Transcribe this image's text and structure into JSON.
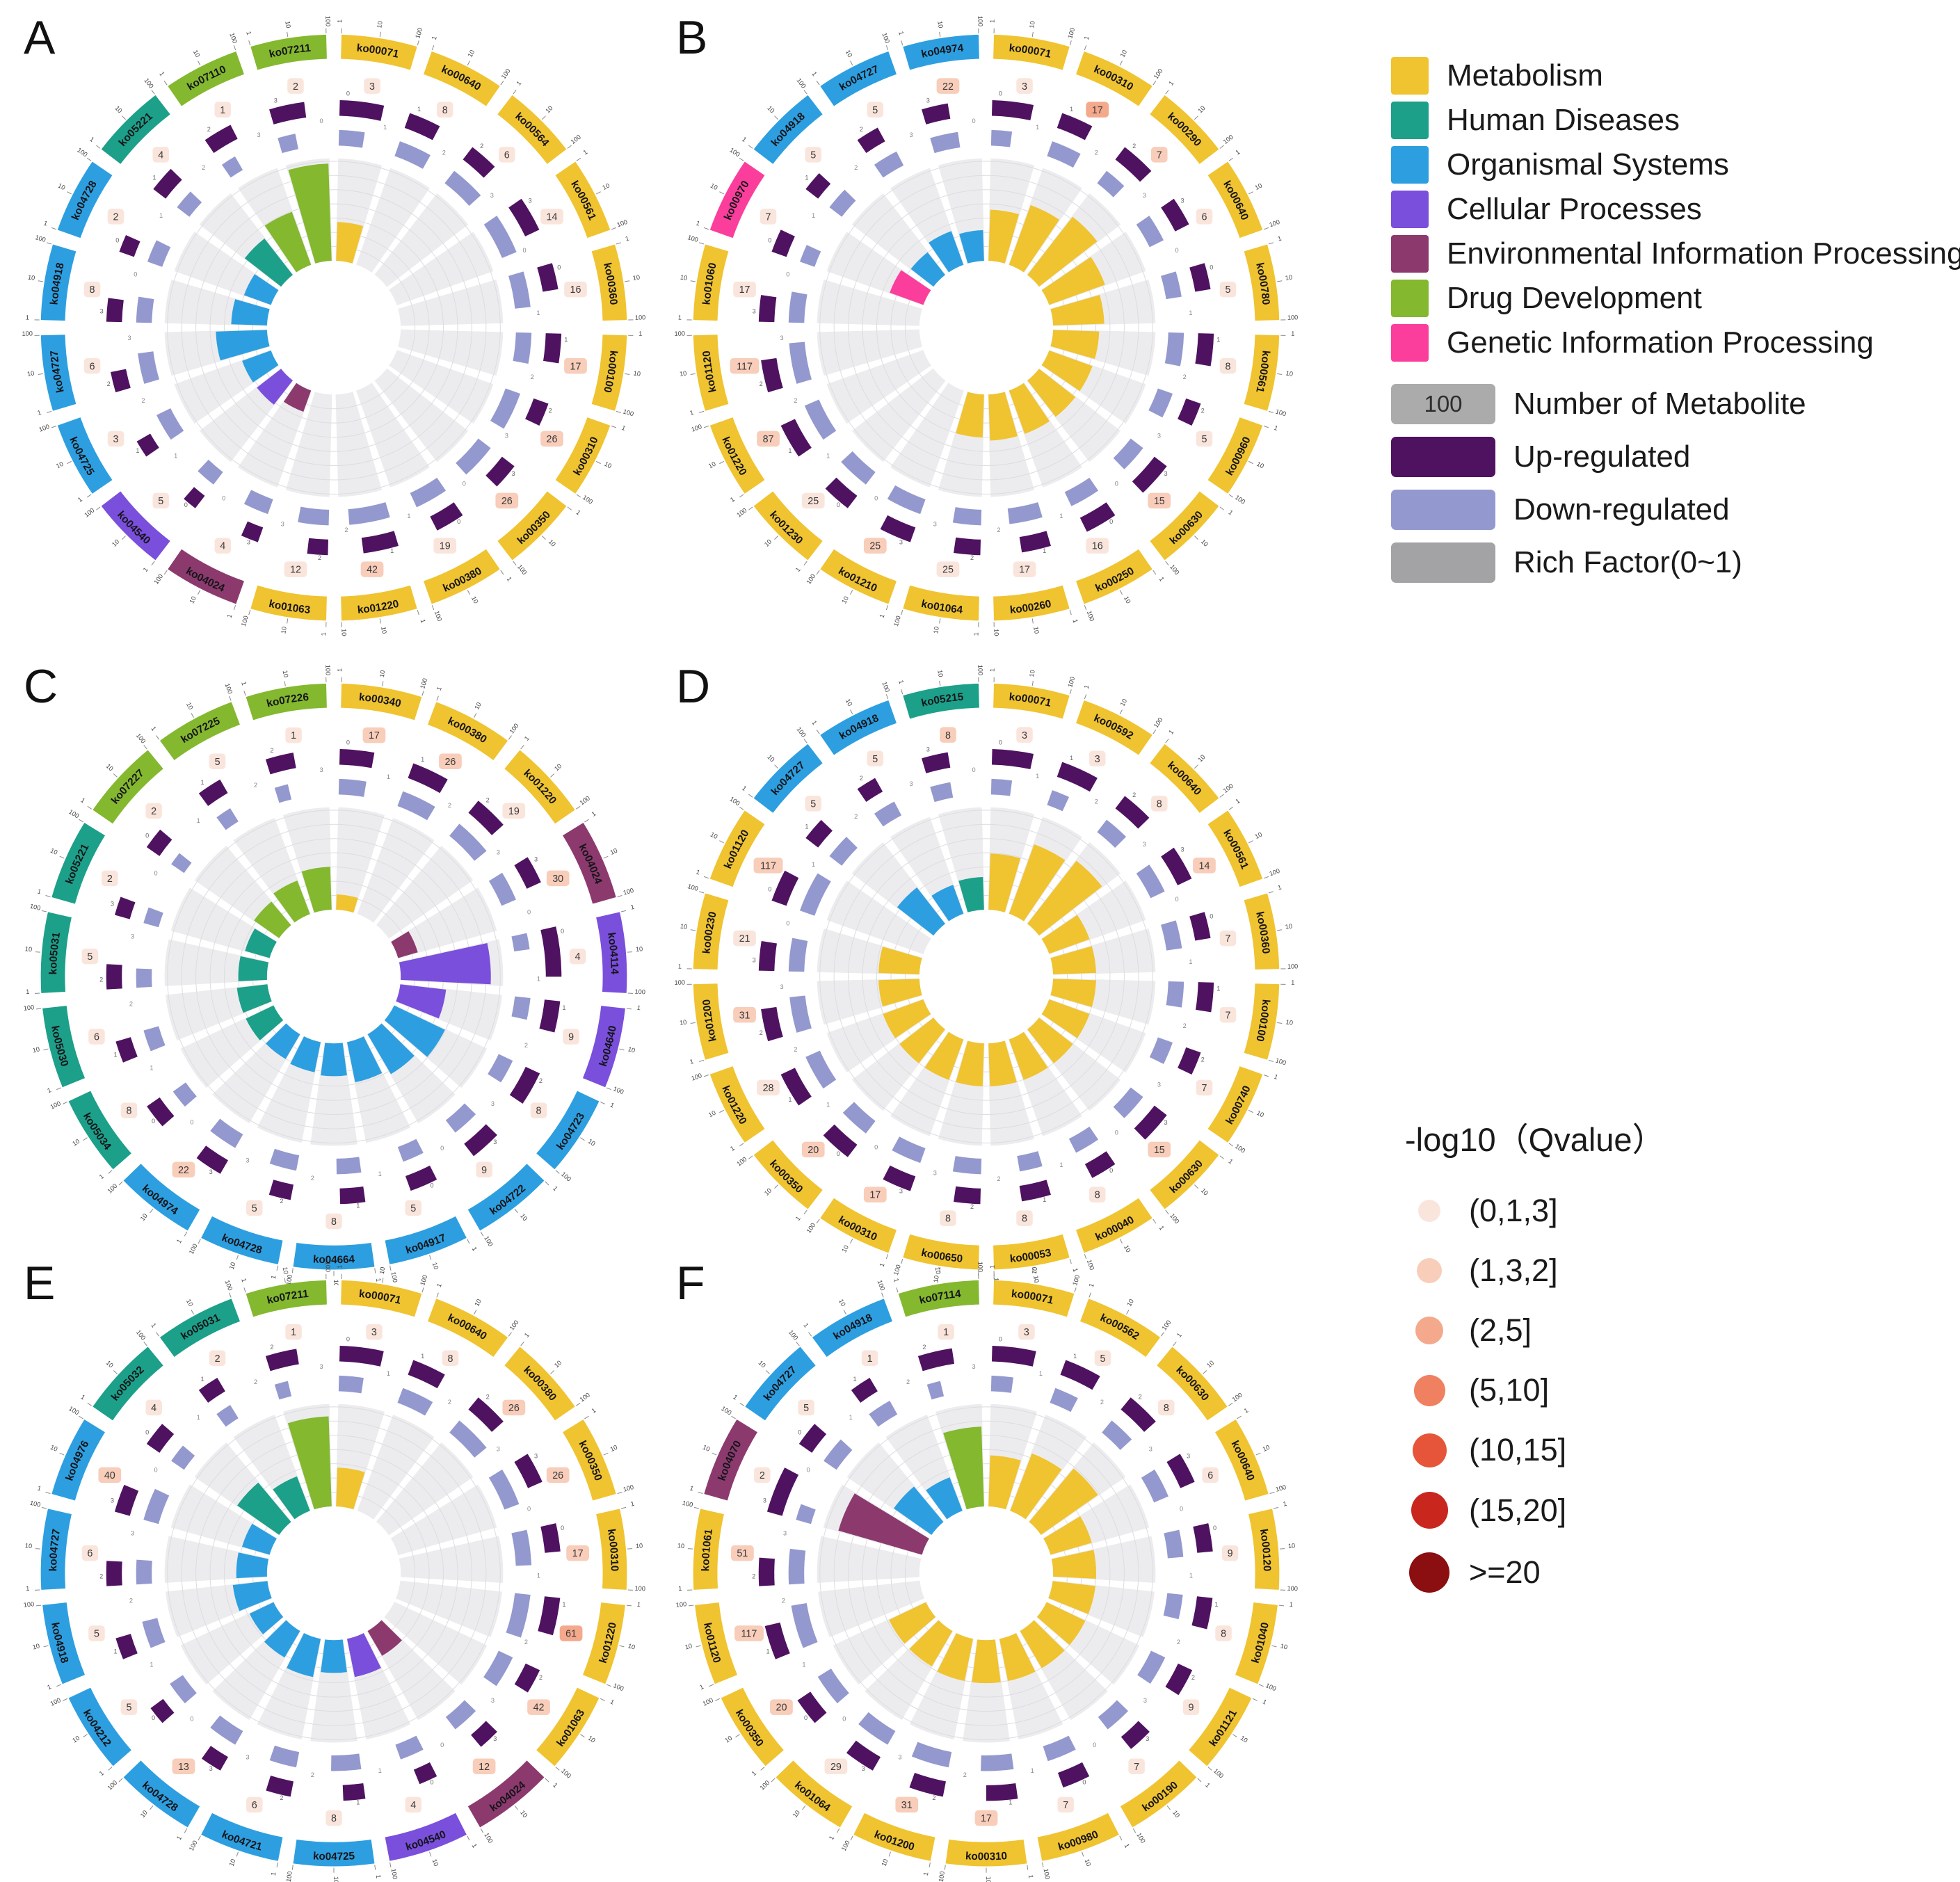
{
  "legend": {
    "categories": [
      {
        "name": "Metabolism",
        "color": "#F0C330"
      },
      {
        "name": "Human Diseases",
        "color": "#1CA089"
      },
      {
        "name": "Organismal Systems",
        "color": "#2D9FE0"
      },
      {
        "name": "Cellular Processes",
        "color": "#7A4FDB"
      },
      {
        "name": "Environmental Information Processing",
        "color": "#8C3A6E"
      },
      {
        "name": "Drug Development",
        "color": "#84B82F"
      },
      {
        "name": "Genetic Information Processing",
        "color": "#FB3E9C"
      }
    ],
    "tracks": [
      {
        "label": "Number of Metabolite",
        "color": "#ABABAB",
        "badge": "100"
      },
      {
        "label": "Up-regulated",
        "color": "#4F1260"
      },
      {
        "label": "Down-regulated",
        "color": "#9399CE"
      },
      {
        "label": "Rich Factor(0~1)",
        "color": "#A3A3A5"
      }
    ],
    "qvalue": {
      "title": "-log10（Qvalue）",
      "bins": [
        {
          "label": "(0,1,3]",
          "color": "#FAE5DC"
        },
        {
          "label": "(1,3,2]",
          "color": "#F8CDBA"
        },
        {
          "label": "(2,5]",
          "color": "#F4A98C"
        },
        {
          "label": "(5,10]",
          "color": "#EF8060"
        },
        {
          "label": "(10,15]",
          "color": "#E6553A"
        },
        {
          "label": "(15,20]",
          "color": "#C9271E"
        },
        {
          "label": ">=20",
          "color": "#8B0E10"
        }
      ]
    }
  },
  "chart_data": {
    "type": "circular-enrichment-bar",
    "description": "Six circos-style KEGG pathway enrichment plots (A-F). Rings outside-in: pathway ID colored by category, number of metabolites badge (shaded by -log10 Qvalue bin), up-regulated arc, down-regulated arc, inner bars = Rich Factor (0~1).",
    "outer_axis_ticks": [
      "1",
      "10",
      "100"
    ],
    "ring_axis_ticks": [
      "0",
      "1",
      "2",
      "3"
    ],
    "segment_fields": [
      "pathway_id",
      "category_index",
      "metabolite_count",
      "qvalue_bin",
      "up_fraction",
      "down_fraction",
      "rich_factor"
    ],
    "panels": [
      {
        "label": "A",
        "segments": [
          [
            "ko00071",
            0,
            3,
            0,
            0.75,
            0.5,
            0.38
          ],
          [
            "ko00640",
            0,
            8,
            0,
            0.55,
            0.65,
            0
          ],
          [
            "ko00564",
            0,
            6,
            0,
            0.5,
            0.7,
            0
          ],
          [
            "ko00561",
            0,
            14,
            0,
            0.6,
            0.8,
            0
          ],
          [
            "ko00360",
            0,
            16,
            0,
            0.45,
            0.7,
            0
          ],
          [
            "ko00100",
            0,
            17,
            1,
            0.5,
            0.6,
            0
          ],
          [
            "ko00310",
            0,
            26,
            1,
            0.4,
            0.75,
            0
          ],
          [
            "ko00350",
            0,
            26,
            1,
            0.45,
            0.7,
            0
          ],
          [
            "ko00380",
            0,
            19,
            0,
            0.5,
            0.65,
            0
          ],
          [
            "ko01220",
            0,
            42,
            1,
            0.6,
            0.8,
            0
          ],
          [
            "ko01063",
            0,
            12,
            0,
            0.35,
            0.6,
            0
          ],
          [
            "ko04024",
            4,
            4,
            0,
            0.3,
            0.5,
            0.22
          ],
          [
            "ko04540",
            3,
            5,
            0,
            0.25,
            0.4,
            0.3
          ],
          [
            "ko04725",
            2,
            3,
            0,
            0.3,
            0.55,
            0.3
          ],
          [
            "ko04727",
            2,
            6,
            0,
            0.35,
            0.6,
            0.5
          ],
          [
            "ko04918",
            2,
            8,
            0,
            0.4,
            0.5,
            0.35
          ],
          [
            "ko04728",
            2,
            2,
            0,
            0.3,
            0.45,
            0.28
          ],
          [
            "ko05221",
            1,
            4,
            0,
            0.45,
            0.4,
            0.45
          ],
          [
            "ko07110",
            5,
            1,
            0,
            0.5,
            0.3,
            0.55
          ],
          [
            "ko07211",
            5,
            2,
            0,
            0.6,
            0.35,
            0.95
          ]
        ]
      },
      {
        "label": "B",
        "segments": [
          [
            "ko00071",
            0,
            3,
            0,
            0.7,
            0.4,
            0.5
          ],
          [
            "ko00310",
            0,
            17,
            2,
            0.55,
            0.6,
            0.62
          ],
          [
            "ko00290",
            0,
            7,
            1,
            0.6,
            0.45,
            0.72
          ],
          [
            "ko00640",
            0,
            6,
            0,
            0.5,
            0.55,
            0.58
          ],
          [
            "ko00780",
            0,
            5,
            0,
            0.45,
            0.5,
            0.5
          ],
          [
            "ko00561",
            0,
            8,
            0,
            0.55,
            0.65,
            0.45
          ],
          [
            "ko00960",
            0,
            5,
            0,
            0.4,
            0.5,
            0.45
          ],
          [
            "ko00630",
            0,
            15,
            1,
            0.6,
            0.55,
            0.45
          ],
          [
            "ko00250",
            0,
            16,
            0,
            0.55,
            0.6,
            0.45
          ],
          [
            "ko00260",
            0,
            17,
            0,
            0.5,
            0.65,
            0.45
          ],
          [
            "ko01064",
            0,
            25,
            0,
            0.45,
            0.55,
            0.42
          ],
          [
            "ko01210",
            0,
            25,
            1,
            0.55,
            0.7,
            0
          ],
          [
            "ko01230",
            0,
            25,
            0,
            0.5,
            0.65,
            0
          ],
          [
            "ko01220",
            0,
            87,
            1,
            0.6,
            0.75,
            0
          ],
          [
            "ko01120",
            0,
            117,
            1,
            0.55,
            0.8,
            0
          ],
          [
            "ko01060",
            0,
            17,
            0,
            0.45,
            0.6,
            0
          ],
          [
            "ko00970",
            6,
            7,
            0,
            0.4,
            0.35,
            0.35
          ],
          [
            "ko04918",
            2,
            5,
            0,
            0.35,
            0.45,
            0.28
          ],
          [
            "ko04727",
            2,
            5,
            0,
            0.4,
            0.5,
            0.35
          ],
          [
            "ko04974",
            2,
            22,
            1,
            0.45,
            0.55,
            0.3
          ]
        ]
      },
      {
        "label": "C",
        "segments": [
          [
            "ko00340",
            0,
            17,
            1,
            0.55,
            0.5,
            0.15
          ],
          [
            "ko00380",
            0,
            26,
            1,
            0.6,
            0.65,
            0
          ],
          [
            "ko01220",
            0,
            19,
            0,
            0.55,
            0.7,
            0
          ],
          [
            "ko04024",
            4,
            30,
            1,
            0.45,
            0.55,
            0.2
          ],
          [
            "ko04114",
            3,
            4,
            0,
            0.8,
            0.3,
            0.88
          ],
          [
            "ko04640",
            3,
            9,
            0,
            0.5,
            0.4,
            0.45
          ],
          [
            "ko04723",
            2,
            8,
            0,
            0.55,
            0.45,
            0.55
          ],
          [
            "ko04722",
            2,
            9,
            0,
            0.5,
            0.5,
            0.45
          ],
          [
            "ko04917",
            2,
            5,
            0,
            0.45,
            0.4,
            0.4
          ],
          [
            "ko04664",
            2,
            8,
            0,
            0.4,
            0.45,
            0.32
          ],
          [
            "ko04728",
            2,
            5,
            0,
            0.35,
            0.5,
            0.3
          ],
          [
            "ko04974",
            2,
            22,
            1,
            0.45,
            0.55,
            0.28
          ],
          [
            "ko05034",
            1,
            8,
            0,
            0.4,
            0.35,
            0.3
          ],
          [
            "ko05030",
            1,
            6,
            0,
            0.35,
            0.4,
            0.3
          ],
          [
            "ko05031",
            1,
            5,
            0,
            0.4,
            0.35,
            0.28
          ],
          [
            "ko05221",
            1,
            2,
            0,
            0.3,
            0.3,
            0.25
          ],
          [
            "ko07227",
            5,
            2,
            0,
            0.35,
            0.25,
            0.3
          ],
          [
            "ko07225",
            5,
            5,
            0,
            0.4,
            0.3,
            0.35
          ],
          [
            "ko07226",
            5,
            1,
            0,
            0.45,
            0.25,
            0.42
          ]
        ]
      },
      {
        "label": "D",
        "segments": [
          [
            "ko00071",
            0,
            3,
            0,
            0.7,
            0.4,
            0.55
          ],
          [
            "ko00592",
            0,
            3,
            0,
            0.65,
            0.35,
            0.72
          ],
          [
            "ko00640",
            0,
            8,
            0,
            0.55,
            0.5,
            0.78
          ],
          [
            "ko00561",
            0,
            14,
            1,
            0.6,
            0.6,
            0.42
          ],
          [
            "ko00360",
            0,
            7,
            0,
            0.45,
            0.55,
            0.42
          ],
          [
            "ko00100",
            0,
            7,
            0,
            0.5,
            0.5,
            0.42
          ],
          [
            "ko00740",
            0,
            7,
            0,
            0.4,
            0.45,
            0.42
          ],
          [
            "ko00630",
            0,
            15,
            1,
            0.55,
            0.55,
            0.42
          ],
          [
            "ko00040",
            0,
            8,
            0,
            0.45,
            0.5,
            0.42
          ],
          [
            "ko00053",
            0,
            8,
            0,
            0.5,
            0.45,
            0.42
          ],
          [
            "ko00650",
            0,
            8,
            0,
            0.45,
            0.55,
            0.42
          ],
          [
            "ko00310",
            0,
            17,
            1,
            0.5,
            0.6,
            0.42
          ],
          [
            "ko00350",
            0,
            20,
            1,
            0.55,
            0.6,
            0.42
          ],
          [
            "ko01220",
            0,
            28,
            0,
            0.6,
            0.7,
            0.42
          ],
          [
            "ko01200",
            0,
            31,
            1,
            0.55,
            0.7,
            0.4
          ],
          [
            "ko00230",
            0,
            21,
            0,
            0.5,
            0.65,
            0.4
          ],
          [
            "ko01120",
            0,
            117,
            1,
            0.55,
            0.8,
            0
          ],
          [
            "ko04727",
            2,
            5,
            0,
            0.4,
            0.5,
            0.45
          ],
          [
            "ko04918",
            2,
            5,
            0,
            0.35,
            0.45,
            0.3
          ],
          [
            "ko05215",
            1,
            8,
            1,
            0.45,
            0.4,
            0.32
          ]
        ]
      },
      {
        "label": "E",
        "segments": [
          [
            "ko00071",
            0,
            3,
            0,
            0.7,
            0.45,
            0.38
          ],
          [
            "ko00640",
            0,
            8,
            0,
            0.55,
            0.6,
            0
          ],
          [
            "ko00380",
            0,
            26,
            1,
            0.55,
            0.7,
            0
          ],
          [
            "ko00350",
            0,
            26,
            1,
            0.5,
            0.7,
            0
          ],
          [
            "ko00310",
            0,
            17,
            1,
            0.45,
            0.65,
            0
          ],
          [
            "ko01220",
            0,
            61,
            2,
            0.6,
            0.8,
            0
          ],
          [
            "ko01063",
            0,
            42,
            1,
            0.4,
            0.6,
            0
          ],
          [
            "ko04024",
            4,
            12,
            1,
            0.35,
            0.5,
            0.28
          ],
          [
            "ko04540",
            3,
            4,
            0,
            0.3,
            0.45,
            0.38
          ],
          [
            "ko04725",
            2,
            8,
            0,
            0.35,
            0.55,
            0.32
          ],
          [
            "ko04721",
            2,
            6,
            0,
            0.4,
            0.5,
            0.38
          ],
          [
            "ko04728",
            2,
            13,
            1,
            0.35,
            0.55,
            0.3
          ],
          [
            "ko04212",
            2,
            5,
            0,
            0.3,
            0.45,
            0.26
          ],
          [
            "ko04918",
            2,
            5,
            0,
            0.35,
            0.5,
            0.34
          ],
          [
            "ko04727",
            2,
            6,
            0,
            0.4,
            0.45,
            0.3
          ],
          [
            "ko04976",
            2,
            40,
            1,
            0.45,
            0.6,
            0.28
          ],
          [
            "ko05032",
            1,
            4,
            0,
            0.4,
            0.35,
            0.5
          ],
          [
            "ko05031",
            1,
            2,
            0,
            0.35,
            0.3,
            0.36
          ],
          [
            "ko07211",
            5,
            1,
            0,
            0.5,
            0.25,
            0.88
          ]
        ]
      },
      {
        "label": "F",
        "segments": [
          [
            "ko00071",
            0,
            3,
            0,
            0.7,
            0.4,
            0.5
          ],
          [
            "ko00562",
            0,
            5,
            0,
            0.6,
            0.45,
            0.6
          ],
          [
            "ko00630",
            0,
            8,
            0,
            0.55,
            0.5,
            0.68
          ],
          [
            "ko00640",
            0,
            6,
            0,
            0.5,
            0.55,
            0.42
          ],
          [
            "ko00120",
            0,
            9,
            0,
            0.45,
            0.5,
            0.42
          ],
          [
            "ko01040",
            0,
            8,
            0,
            0.5,
            0.45,
            0.42
          ],
          [
            "ko01121",
            0,
            9,
            0,
            0.45,
            0.55,
            0.42
          ],
          [
            "ko00190",
            0,
            7,
            0,
            0.4,
            0.5,
            0.42
          ],
          [
            "ko00980",
            0,
            7,
            0,
            0.45,
            0.55,
            0.42
          ],
          [
            "ko00310",
            0,
            17,
            1,
            0.5,
            0.6,
            0.42
          ],
          [
            "ko01200",
            0,
            31,
            1,
            0.55,
            0.7,
            0.42
          ],
          [
            "ko01064",
            0,
            29,
            0,
            0.5,
            0.65,
            0.4
          ],
          [
            "ko00350",
            0,
            20,
            1,
            0.45,
            0.6,
            0.4
          ],
          [
            "ko01120",
            0,
            117,
            1,
            0.55,
            0.8,
            0
          ],
          [
            "ko01061",
            0,
            51,
            1,
            0.45,
            0.65,
            0
          ],
          [
            "ko04070",
            4,
            2,
            0,
            0.75,
            0.3,
            0.85
          ],
          [
            "ko04727",
            2,
            5,
            0,
            0.4,
            0.5,
            0.45
          ],
          [
            "ko04918",
            2,
            1,
            0,
            0.35,
            0.45,
            0.35
          ],
          [
            "ko07114",
            5,
            1,
            0,
            0.55,
            0.25,
            0.78
          ]
        ]
      }
    ]
  }
}
